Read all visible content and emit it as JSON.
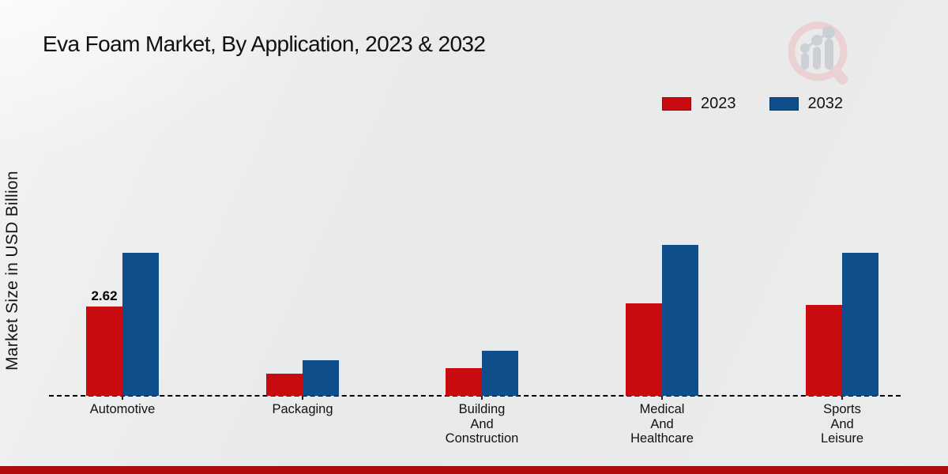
{
  "title": "Eva Foam Market, By Application, 2023 & 2032",
  "ylabel": "Market Size in USD Billion",
  "colors": {
    "series_2023": "#c80b0e",
    "series_2032": "#0e4e8b",
    "footer_accent": "#b20d0d",
    "background": "#eaebeb",
    "text": "#111111"
  },
  "logo": {
    "name": "market-research-magnifier-logo",
    "ring_color": "#eccdd1",
    "bars_color": "#c7cbd1"
  },
  "chart_data": {
    "type": "bar",
    "title": "Eva Foam Market, By Application, 2023 & 2032",
    "xlabel": "",
    "ylabel": "Market Size in USD Billion",
    "categories": [
      "Automotive",
      "Packaging",
      "Building And Construction",
      "Medical And Healthcare",
      "Sports And Leisure"
    ],
    "series": [
      {
        "name": "2023",
        "color": "#c80b0e",
        "values": [
          2.62,
          0.64,
          0.81,
          2.71,
          2.67
        ]
      },
      {
        "name": "2032",
        "color": "#0e4e8b",
        "values": [
          4.2,
          1.04,
          1.31,
          4.42,
          4.2
        ]
      }
    ],
    "data_labels": [
      {
        "series": "2023",
        "category": "Automotive",
        "text": "2.62"
      }
    ],
    "ylim": [
      0,
      5
    ],
    "grid": false,
    "y_axis_ticks_visible": false,
    "baseline_style": "dashed",
    "legend_position": "top-right"
  }
}
